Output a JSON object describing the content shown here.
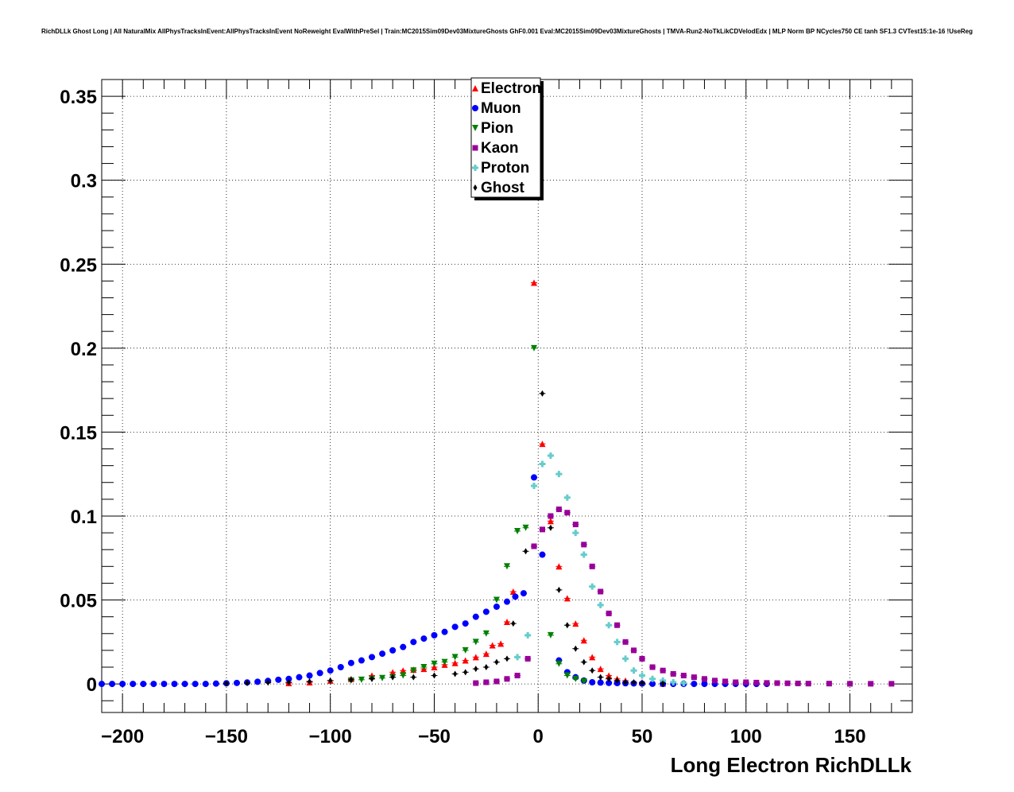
{
  "chart_data": {
    "type": "scatter",
    "title": "RichDLLk Ghost Long | All NaturalMix AllPhysTracksInEvent:AllPhysTracksInEvent NoReweight EvalWithPreSel | Train:MC2015Sim09Dev03MixtureGhosts GhF0.001 Eval:MC2015Sim09Dev03MixtureGhosts | TMVA-Run2-NoTkLikCDVelodEdx | MLP Norm BP NCycles750 CE tanh SF1.3 CVTest15:1e-16 !UseReg",
    "xlabel": "Long Electron RichDLLk",
    "ylabel": "",
    "xlim": [
      -210,
      180
    ],
    "ylim": [
      -0.017,
      0.36
    ],
    "xticks": [
      -200,
      -150,
      -100,
      -50,
      0,
      50,
      100,
      150
    ],
    "xtick_labels": [
      "−200",
      "−150",
      "−100",
      "−50",
      "0",
      "50",
      "100",
      "150"
    ],
    "yticks": [
      0,
      0.05,
      0.1,
      0.15,
      0.2,
      0.25,
      0.3,
      0.35
    ],
    "ytick_labels": [
      "0",
      "0.05",
      "0.1",
      "0.15",
      "0.2",
      "0.25",
      "0.3",
      "0.35"
    ],
    "grid": true,
    "legend_position": "top-center",
    "series": [
      {
        "name": "Electron",
        "color": "#ff0000",
        "marker": "triangle-up",
        "x": [
          -120,
          -110,
          -100,
          -90,
          -80,
          -70,
          -65,
          -60,
          -55,
          -50,
          -45,
          -40,
          -35,
          -30,
          -25,
          -22,
          -18,
          -15,
          -12,
          -2,
          2,
          6,
          10,
          14,
          18,
          22,
          26,
          30,
          34,
          38,
          42,
          50,
          60
        ],
        "y": [
          0.0005,
          0.001,
          0.002,
          0.003,
          0.005,
          0.007,
          0.008,
          0.0085,
          0.009,
          0.01,
          0.0115,
          0.0125,
          0.014,
          0.016,
          0.018,
          0.023,
          0.024,
          0.037,
          0.055,
          0.239,
          0.143,
          0.097,
          0.07,
          0.051,
          0.036,
          0.026,
          0.016,
          0.009,
          0.005,
          0.003,
          0.002,
          0.001,
          0.0003
        ]
      },
      {
        "name": "Muon",
        "color": "#0000ff",
        "marker": "circle",
        "x": [
          -210,
          -205,
          -200,
          -195,
          -190,
          -185,
          -180,
          -175,
          -170,
          -165,
          -160,
          -155,
          -150,
          -145,
          -140,
          -135,
          -130,
          -125,
          -120,
          -115,
          -110,
          -105,
          -100,
          -95,
          -90,
          -85,
          -80,
          -75,
          -70,
          -65,
          -60,
          -55,
          -50,
          -45,
          -40,
          -35,
          -30,
          -25,
          -20,
          -15,
          -11,
          -7,
          -2,
          2,
          10,
          14,
          18,
          22,
          26,
          30,
          34,
          38,
          42,
          46,
          50,
          55,
          60,
          65,
          70,
          75,
          80,
          85,
          90,
          95,
          100,
          105,
          110
        ],
        "y": [
          0,
          0,
          0,
          0,
          0,
          0,
          0,
          0,
          0,
          0,
          0,
          0.0002,
          0.0004,
          0.0006,
          0.0009,
          0.0013,
          0.0018,
          0.0025,
          0.003,
          0.004,
          0.005,
          0.0065,
          0.008,
          0.01,
          0.0125,
          0.014,
          0.016,
          0.018,
          0.02,
          0.022,
          0.025,
          0.027,
          0.029,
          0.031,
          0.034,
          0.036,
          0.04,
          0.043,
          0.046,
          0.049,
          0.052,
          0.054,
          0.123,
          0.077,
          0.014,
          0.007,
          0.004,
          0.002,
          0.001,
          0.0008,
          0.0006,
          0.0005,
          0.0004,
          0.0003,
          0.0002,
          0.0001,
          0,
          0,
          0,
          0,
          0,
          0,
          0,
          0,
          0,
          0,
          0
        ]
      },
      {
        "name": "Pion",
        "color": "#008000",
        "marker": "triangle-down",
        "x": [
          -90,
          -85,
          -80,
          -75,
          -70,
          -65,
          -60,
          -55,
          -50,
          -45,
          -40,
          -35,
          -30,
          -25,
          -20,
          -15,
          -10,
          -6,
          -2,
          6,
          10,
          14,
          18,
          22
        ],
        "y": [
          0.002,
          0.0025,
          0.003,
          0.0035,
          0.004,
          0.005,
          0.008,
          0.01,
          0.012,
          0.013,
          0.016,
          0.02,
          0.025,
          0.03,
          0.05,
          0.07,
          0.091,
          0.093,
          0.2,
          0.029,
          0.012,
          0.005,
          0.003,
          0.0015
        ]
      },
      {
        "name": "Kaon",
        "color": "#990099",
        "marker": "square",
        "x": [
          -30,
          -25,
          -20,
          -15,
          -10,
          -5,
          -2,
          2,
          6,
          10,
          14,
          18,
          22,
          26,
          30,
          34,
          38,
          42,
          46,
          50,
          55,
          60,
          65,
          70,
          75,
          80,
          85,
          90,
          95,
          100,
          105,
          110,
          115,
          120,
          125,
          130,
          140,
          150,
          160,
          170
        ],
        "y": [
          0.0005,
          0.001,
          0.0015,
          0.003,
          0.005,
          0.015,
          0.082,
          0.092,
          0.1,
          0.104,
          0.102,
          0.095,
          0.083,
          0.07,
          0.055,
          0.042,
          0.035,
          0.025,
          0.02,
          0.015,
          0.01,
          0.008,
          0.006,
          0.005,
          0.004,
          0.003,
          0.002,
          0.0015,
          0.001,
          0.001,
          0.0008,
          0.0006,
          0.0005,
          0.0004,
          0.0003,
          0.0002,
          0.0002,
          0.0001,
          0.0001,
          0.0001
        ]
      },
      {
        "name": "Proton",
        "color": "#66cccc",
        "marker": "cross",
        "x": [
          -10,
          -5,
          -2,
          2,
          6,
          10,
          14,
          18,
          22,
          26,
          30,
          34,
          38,
          42,
          46,
          50,
          55,
          60,
          65,
          70
        ],
        "y": [
          0.016,
          0.029,
          0.118,
          0.131,
          0.136,
          0.125,
          0.111,
          0.09,
          0.077,
          0.058,
          0.047,
          0.035,
          0.025,
          0.015,
          0.008,
          0.005,
          0.003,
          0.002,
          0.001,
          0.0005
        ]
      },
      {
        "name": "Ghost",
        "color": "#000000",
        "marker": "diamond",
        "x": [
          -150,
          -140,
          -130,
          -120,
          -110,
          -100,
          -90,
          -80,
          -70,
          -60,
          -50,
          -40,
          -35,
          -30,
          -25,
          -20,
          -15,
          -12,
          -6,
          2,
          6,
          10,
          14,
          18,
          22,
          26,
          30,
          34,
          38,
          42,
          46,
          50,
          60
        ],
        "y": [
          0.0002,
          0.0005,
          0.0008,
          0.001,
          0.0015,
          0.002,
          0.0025,
          0.003,
          0.004,
          0.004,
          0.005,
          0.006,
          0.007,
          0.009,
          0.01,
          0.013,
          0.015,
          0.036,
          0.079,
          0.173,
          0.093,
          0.056,
          0.035,
          0.021,
          0.013,
          0.008,
          0.004,
          0.003,
          0.002,
          0.001,
          0.001,
          0.0005,
          0.0002
        ]
      }
    ]
  }
}
